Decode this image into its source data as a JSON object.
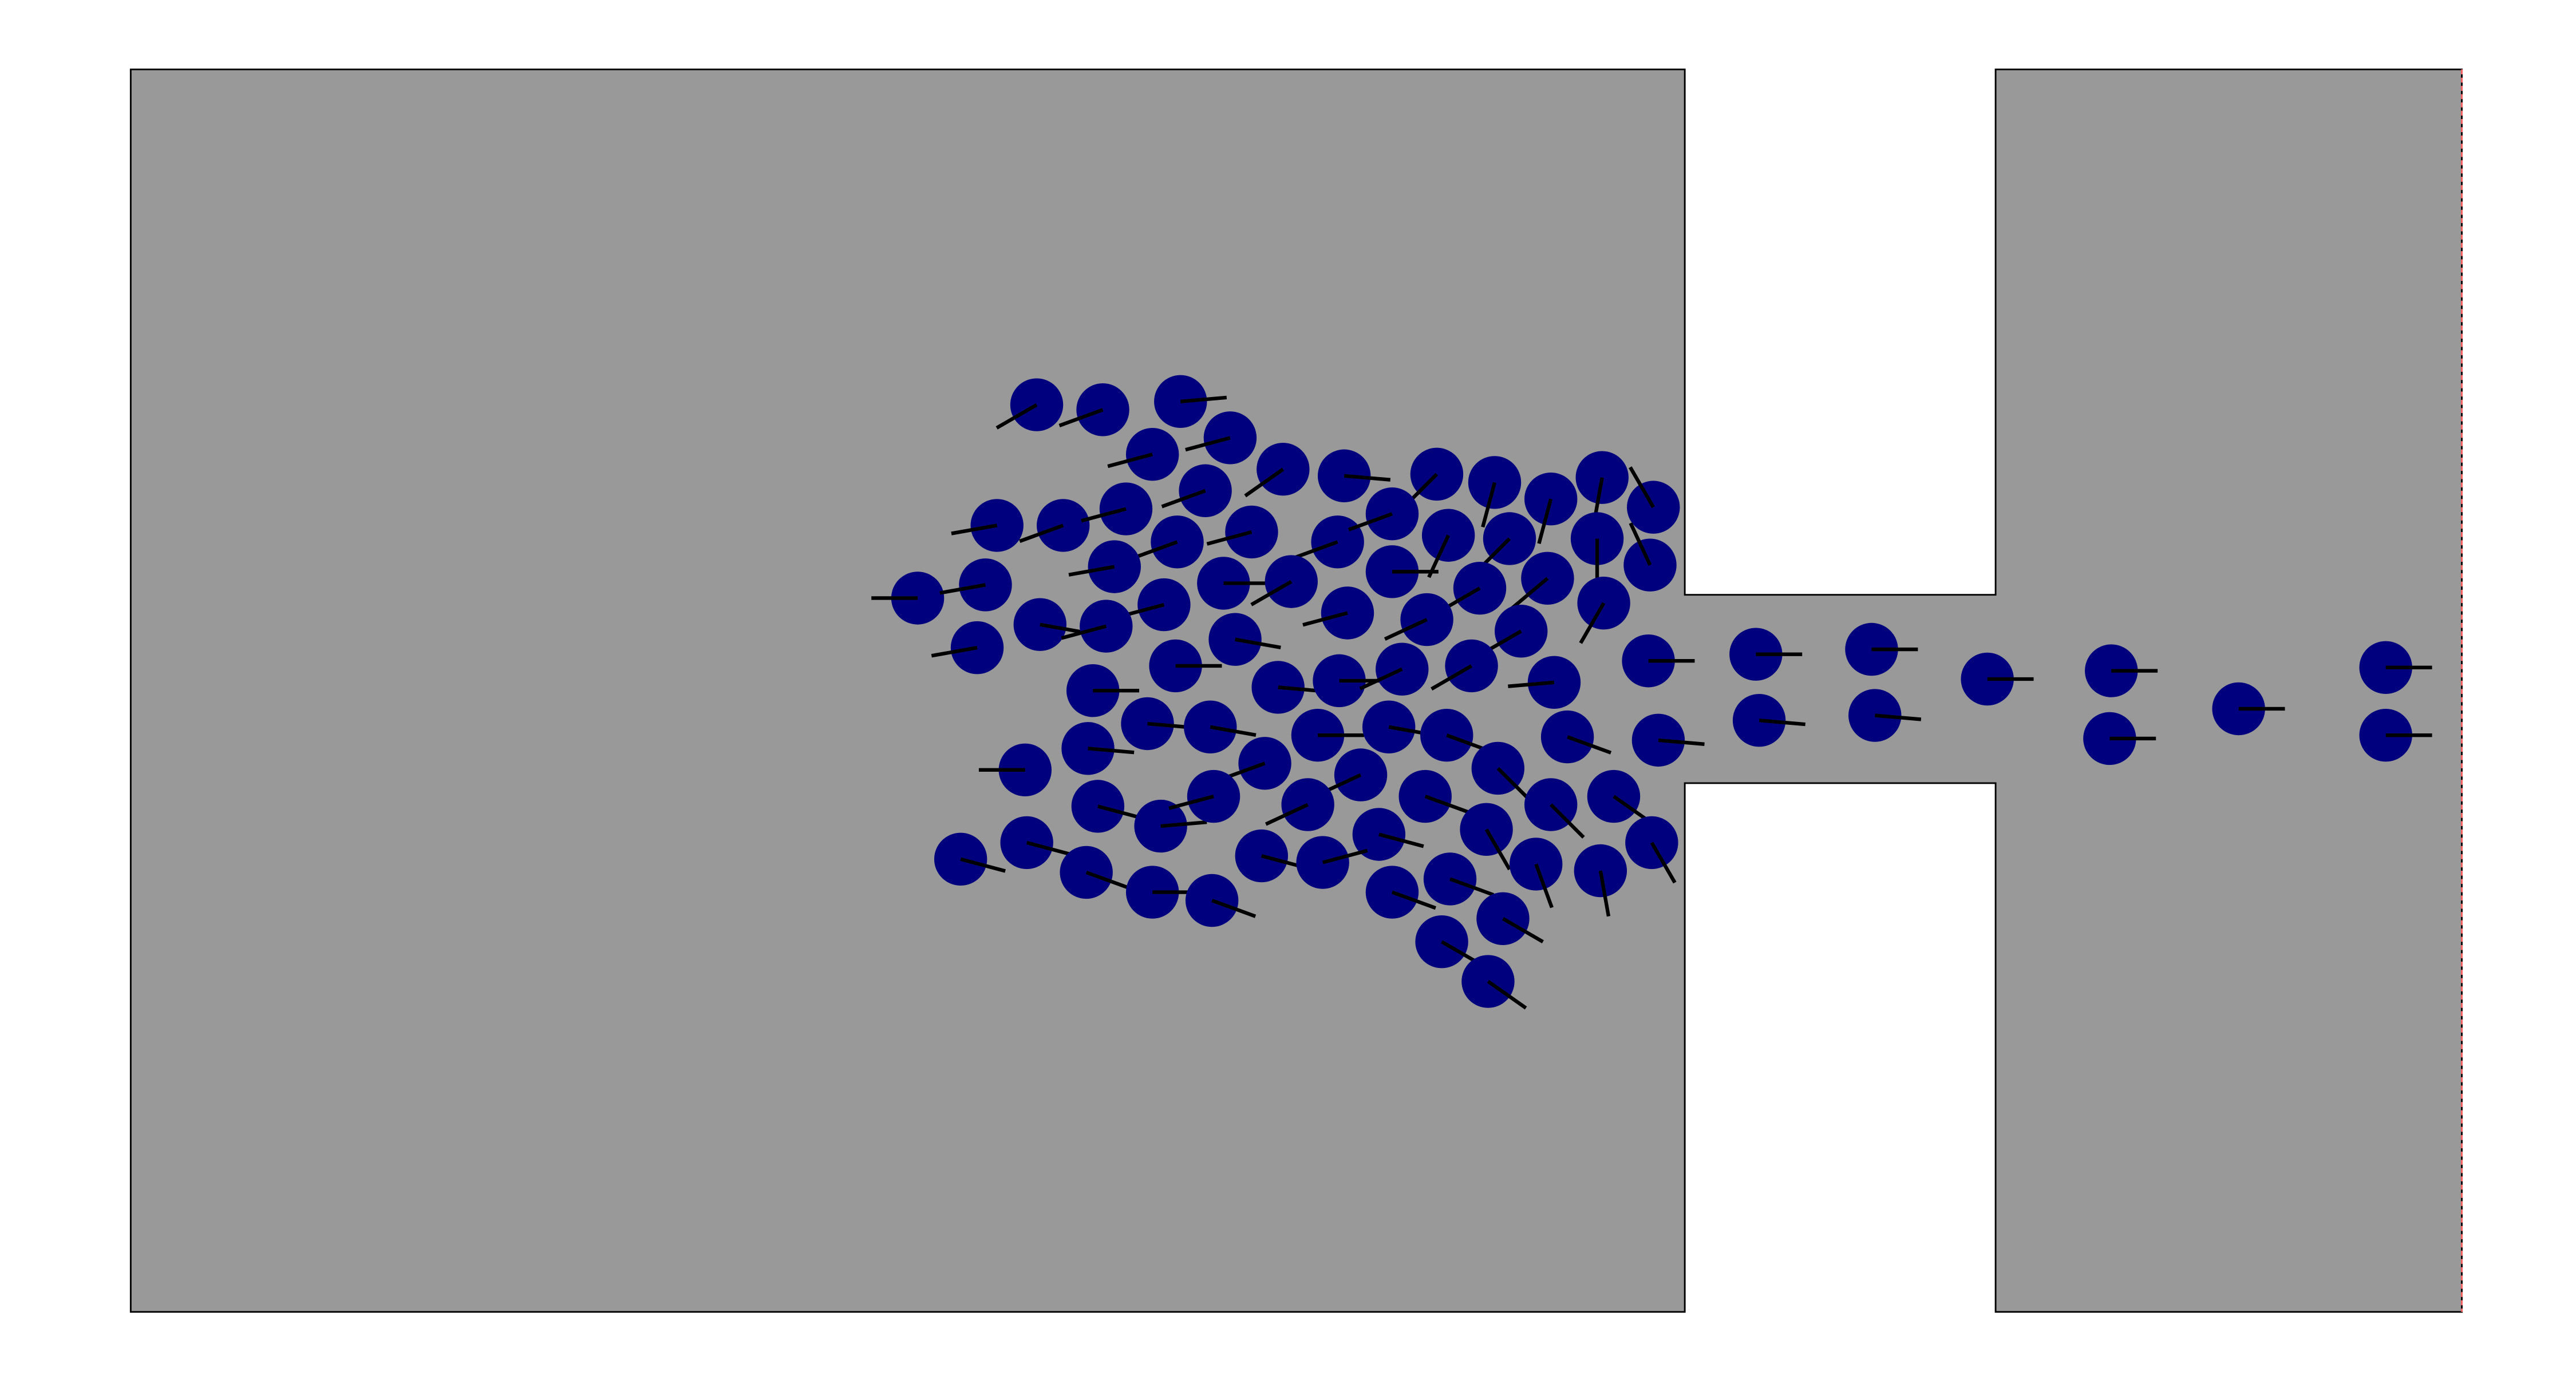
{
  "colors": {
    "background": "#ffffff",
    "domain_fill": "#999999",
    "domain_stroke": "#000000",
    "agent_fill": "#00007f",
    "heading_stroke": "#000000",
    "exit_line": "#ff6666"
  },
  "agents": [
    [
      627,
      245,
      210
    ],
    [
      667,
      248,
      200
    ],
    [
      714,
      243,
      5
    ],
    [
      744,
      265,
      195
    ],
    [
      776,
      284,
      215
    ],
    [
      813,
      288,
      355
    ],
    [
      869,
      287,
      225
    ],
    [
      904,
      292,
      255
    ],
    [
      938,
      302,
      255
    ],
    [
      969,
      289,
      260
    ],
    [
      1000,
      307,
      120
    ],
    [
      697,
      275,
      195
    ],
    [
      729,
      297,
      200
    ],
    [
      603,
      318,
      190
    ],
    [
      643,
      318,
      200
    ],
    [
      681,
      308,
      195
    ],
    [
      712,
      328,
      200
    ],
    [
      757,
      322,
      195
    ],
    [
      809,
      328,
      200
    ],
    [
      842,
      311,
      200
    ],
    [
      876,
      324,
      245
    ],
    [
      913,
      326,
      225
    ],
    [
      966,
      326,
      270
    ],
    [
      998,
      342,
      115
    ],
    [
      674,
      343,
      190
    ],
    [
      704,
      366,
      195
    ],
    [
      740,
      353,
      0
    ],
    [
      781,
      352,
      210
    ],
    [
      815,
      371,
      195
    ],
    [
      842,
      346,
      0
    ],
    [
      895,
      356,
      210
    ],
    [
      936,
      350,
      220
    ],
    [
      970,
      365,
      240
    ],
    [
      997,
      400,
      0
    ],
    [
      555,
      362,
      180
    ],
    [
      596,
      354,
      190
    ],
    [
      629,
      378,
      350
    ],
    [
      669,
      379,
      195
    ],
    [
      711,
      403,
      0
    ],
    [
      747,
      387,
      350
    ],
    [
      591,
      392,
      190
    ],
    [
      863,
      375,
      205
    ],
    [
      920,
      382,
      210
    ],
    [
      661,
      418,
      0
    ],
    [
      773,
      416,
      355
    ],
    [
      810,
      412,
      0
    ],
    [
      848,
      405,
      205
    ],
    [
      890,
      403,
      210
    ],
    [
      940,
      413,
      185
    ],
    [
      694,
      438,
      355
    ],
    [
      732,
      440,
      350
    ],
    [
      797,
      445,
      0
    ],
    [
      840,
      440,
      350
    ],
    [
      875,
      445,
      340
    ],
    [
      948,
      446,
      340
    ],
    [
      1003,
      448,
      355
    ],
    [
      658,
      453,
      355
    ],
    [
      620,
      466,
      180
    ],
    [
      765,
      462,
      200
    ],
    [
      823,
      469,
      205
    ],
    [
      862,
      482,
      340
    ],
    [
      906,
      465,
      315
    ],
    [
      664,
      488,
      345
    ],
    [
      702,
      500,
      5
    ],
    [
      734,
      482,
      195
    ],
    [
      791,
      487,
      205
    ],
    [
      834,
      505,
      345
    ],
    [
      899,
      502,
      300
    ],
    [
      938,
      487,
      315
    ],
    [
      976,
      482,
      325
    ],
    [
      999,
      510,
      300
    ],
    [
      581,
      520,
      345
    ],
    [
      621,
      510,
      345
    ],
    [
      657,
      528,
      340
    ],
    [
      697,
      540,
      0
    ],
    [
      733,
      545,
      340
    ],
    [
      763,
      518,
      345
    ],
    [
      800,
      522,
      15
    ],
    [
      842,
      540,
      340
    ],
    [
      877,
      532,
      340
    ],
    [
      929,
      523,
      290
    ],
    [
      968,
      527,
      280
    ],
    [
      872,
      570,
      330
    ],
    [
      909,
      556,
      330
    ],
    [
      900,
      594,
      325
    ],
    [
      1062,
      396,
      0
    ],
    [
      1132,
      393,
      0
    ],
    [
      1064,
      436,
      355
    ],
    [
      1134,
      433,
      355
    ],
    [
      1202,
      411,
      0
    ],
    [
      1277,
      406,
      0
    ],
    [
      1276,
      447,
      0
    ],
    [
      1354,
      429,
      0
    ],
    [
      1443,
      404,
      0
    ],
    [
      1443,
      445,
      0
    ]
  ]
}
